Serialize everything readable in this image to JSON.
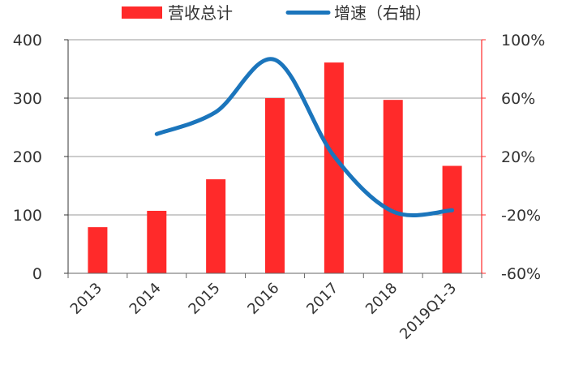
{
  "chart_data": {
    "type": "bar",
    "categories": [
      "2013",
      "2014",
      "2015",
      "2016",
      "2017",
      "2018",
      "2019Q1-3"
    ],
    "series": [
      {
        "name": "营收总计",
        "type": "bar",
        "axis": "left",
        "color": "#ff2a2a",
        "values": [
          79,
          107,
          161,
          300,
          361,
          297,
          184
        ]
      },
      {
        "name": "增速（右轴）",
        "type": "line",
        "axis": "right",
        "color": "#1b75bc",
        "values": [
          null,
          35.4,
          50.5,
          86.3,
          20.3,
          -17.7,
          -16.8
        ]
      }
    ],
    "y_left": {
      "min": 0,
      "max": 400,
      "ticks": [
        "0",
        "100",
        "200",
        "300",
        "400"
      ]
    },
    "y_right": {
      "min": -60,
      "max": 100,
      "ticks": [
        "-60%",
        "-20%",
        "20%",
        "60%",
        "100%"
      ]
    },
    "grid": true,
    "legend": "top"
  }
}
